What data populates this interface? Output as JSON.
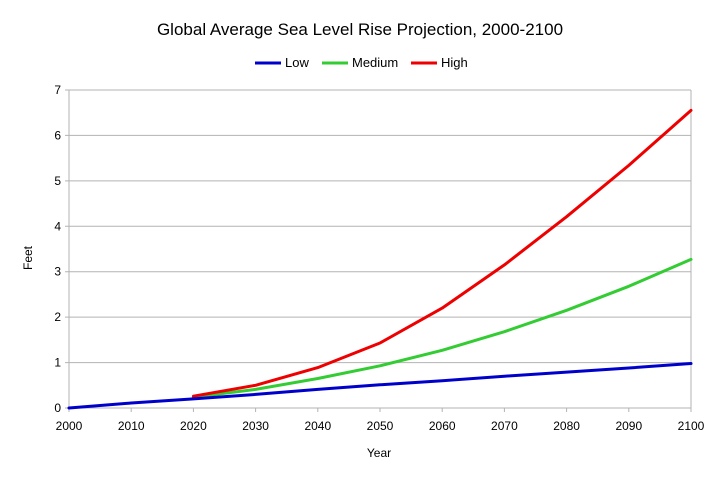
{
  "chart_data": {
    "type": "line",
    "title": "Global Average Sea Level Rise Projection, 2000-2100",
    "xlabel": "Year",
    "ylabel": "Feet",
    "x": [
      2000,
      2010,
      2020,
      2030,
      2040,
      2050,
      2060,
      2070,
      2080,
      2090,
      2100
    ],
    "xlim": [
      2000,
      2100
    ],
    "ylim": [
      0,
      7
    ],
    "x_ticks": [
      "2000",
      "2010",
      "2020",
      "2030",
      "2040",
      "2050",
      "2060",
      "2070",
      "2080",
      "2090",
      "2100"
    ],
    "y_ticks": [
      "0",
      "1",
      "2",
      "3",
      "4",
      "5",
      "6",
      "7"
    ],
    "grid": "horizontal",
    "legend_position": "top-center",
    "series": [
      {
        "name": "Low",
        "color": "#0000cc",
        "x": [
          2000,
          2010,
          2020,
          2030,
          2040,
          2050,
          2060,
          2070,
          2080,
          2090,
          2100
        ],
        "values": [
          0,
          0.11,
          0.2,
          0.3,
          0.41,
          0.51,
          0.6,
          0.7,
          0.79,
          0.88,
          0.98
        ]
      },
      {
        "name": "Medium",
        "color": "#33cc33",
        "x": [
          2020,
          2030,
          2040,
          2050,
          2060,
          2070,
          2080,
          2090,
          2100
        ],
        "values": [
          0.24,
          0.41,
          0.65,
          0.93,
          1.27,
          1.68,
          2.15,
          2.68,
          3.27
        ]
      },
      {
        "name": "High",
        "color": "#ee0000",
        "x": [
          2020,
          2030,
          2040,
          2050,
          2060,
          2070,
          2080,
          2090,
          2100
        ],
        "values": [
          0.26,
          0.5,
          0.89,
          1.43,
          2.2,
          3.15,
          4.21,
          5.34,
          6.55
        ]
      }
    ]
  }
}
